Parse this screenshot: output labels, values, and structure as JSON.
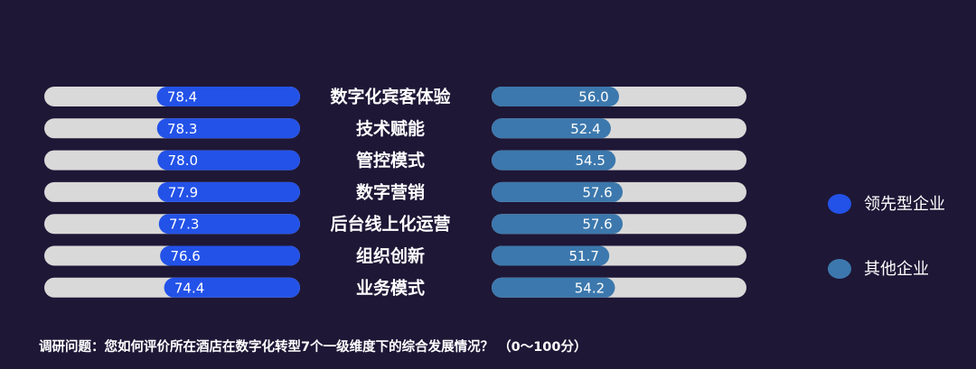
{
  "chart_data": {
    "type": "bar",
    "categories": [
      "数字化宾客体验",
      "技术赋能",
      "管控模式",
      "数字营销",
      "后台线上化运营",
      "组织创新",
      "业务模式"
    ],
    "series": [
      {
        "name": "领先型企业",
        "values": [
          78.4,
          78.3,
          78.0,
          77.9,
          77.3,
          76.6,
          74.4
        ],
        "color": "#2352e8"
      },
      {
        "name": "其他企业",
        "values": [
          56.0,
          52.4,
          54.5,
          57.6,
          57.6,
          51.7,
          54.2
        ],
        "color": "#3c78ad"
      }
    ],
    "track_color": "#d9d9d9",
    "left_orientation": "right-aligned",
    "legend_position": "right",
    "grid": false
  },
  "footnote": "调研问题：您如何评价所在酒店在数字化转型7个一级维度下的综合发展情况？ （0～100分）"
}
